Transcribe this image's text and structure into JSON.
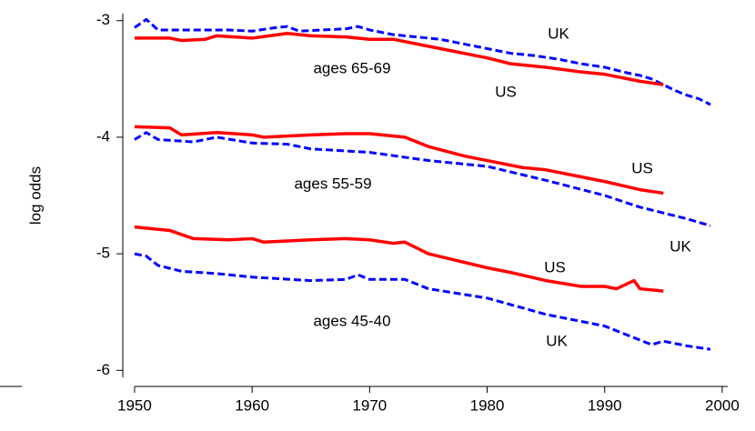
{
  "chart_data": {
    "type": "line",
    "ylabel": "log odds",
    "xlim": [
      1949,
      2000.5
    ],
    "xticks": [
      1950,
      1960,
      1970,
      1980,
      1990,
      2000
    ],
    "ylim": [
      -6.06,
      -2.94
    ],
    "yticks": [
      -3,
      -4,
      -5,
      -6
    ],
    "annotations": [
      "ages 65-69",
      "ages 55-59",
      "ages 45-40"
    ],
    "series": [
      {
        "name": "UK",
        "color": "#0000ff",
        "line_style": "dashed",
        "x": [
          1950,
          1951,
          1952,
          1953,
          1955,
          1958,
          1960,
          1962,
          1963,
          1964,
          1966,
          1968,
          1969,
          1970,
          1972,
          1974,
          1976,
          1978,
          1980,
          1982,
          1984,
          1986,
          1988,
          1990,
          1992,
          1993,
          1994,
          1995,
          1996,
          1997,
          1998,
          1999
        ],
        "values": [
          -3.06,
          -2.99,
          -3.08,
          -3.08,
          -3.08,
          -3.08,
          -3.09,
          -3.06,
          -3.05,
          -3.09,
          -3.08,
          -3.07,
          -3.05,
          -3.08,
          -3.12,
          -3.14,
          -3.16,
          -3.2,
          -3.24,
          -3.28,
          -3.3,
          -3.33,
          -3.37,
          -3.4,
          -3.45,
          -3.47,
          -3.5,
          -3.55,
          -3.6,
          -3.64,
          -3.67,
          -3.72
        ]
      },
      {
        "name": "US",
        "color": "#ff0000",
        "line_style": "solid",
        "x": [
          1950,
          1953,
          1954,
          1956,
          1957,
          1960,
          1963,
          1965,
          1968,
          1970,
          1972,
          1975,
          1978,
          1980,
          1982,
          1985,
          1988,
          1990,
          1993,
          1995
        ],
        "values": [
          -3.15,
          -3.15,
          -3.17,
          -3.16,
          -3.13,
          -3.15,
          -3.11,
          -3.13,
          -3.14,
          -3.16,
          -3.16,
          -3.22,
          -3.28,
          -3.32,
          -3.37,
          -3.4,
          -3.44,
          -3.46,
          -3.52,
          -3.55
        ]
      },
      {
        "name": "UK",
        "color": "#0000ff",
        "line_style": "dashed",
        "x": [
          1950,
          1951,
          1952,
          1955,
          1957,
          1960,
          1963,
          1965,
          1970,
          1975,
          1980,
          1985,
          1990,
          1993,
          1995,
          1997,
          1999
        ],
        "values": [
          -4.02,
          -3.96,
          -4.02,
          -4.04,
          -4.0,
          -4.05,
          -4.06,
          -4.1,
          -4.13,
          -4.2,
          -4.25,
          -4.37,
          -4.5,
          -4.6,
          -4.65,
          -4.7,
          -4.76
        ]
      },
      {
        "name": "US",
        "color": "#ff0000",
        "line_style": "solid",
        "x": [
          1950,
          1953,
          1954,
          1957,
          1960,
          1961,
          1965,
          1968,
          1970,
          1973,
          1975,
          1978,
          1980,
          1983,
          1985,
          1988,
          1990,
          1993,
          1995
        ],
        "values": [
          -3.91,
          -3.92,
          -3.98,
          -3.96,
          -3.98,
          -4.0,
          -3.98,
          -3.97,
          -3.97,
          -4.0,
          -4.08,
          -4.16,
          -4.2,
          -4.26,
          -4.28,
          -4.34,
          -4.38,
          -4.45,
          -4.48
        ]
      },
      {
        "name": "UK",
        "color": "#0000ff",
        "line_style": "dashed",
        "x": [
          1950,
          1951,
          1952,
          1954,
          1957,
          1960,
          1965,
          1968,
          1969,
          1970,
          1973,
          1975,
          1980,
          1985,
          1990,
          1992,
          1994,
          1995,
          1997,
          1999
        ],
        "values": [
          -5.0,
          -5.02,
          -5.1,
          -5.15,
          -5.17,
          -5.2,
          -5.23,
          -5.22,
          -5.18,
          -5.22,
          -5.22,
          -5.3,
          -5.38,
          -5.52,
          -5.62,
          -5.7,
          -5.78,
          -5.75,
          -5.79,
          -5.82
        ]
      },
      {
        "name": "US",
        "color": "#ff0000",
        "line_style": "solid",
        "x": [
          1950,
          1953,
          1955,
          1958,
          1960,
          1961,
          1965,
          1968,
          1970,
          1972,
          1973,
          1975,
          1980,
          1982,
          1985,
          1988,
          1990,
          1991,
          1992.5,
          1993,
          1995
        ],
        "values": [
          -4.77,
          -4.8,
          -4.87,
          -4.88,
          -4.87,
          -4.9,
          -4.88,
          -4.87,
          -4.88,
          -4.91,
          -4.9,
          -5.0,
          -5.12,
          -5.16,
          -5.23,
          -5.28,
          -5.28,
          -5.3,
          -5.23,
          -5.3,
          -5.32
        ]
      }
    ]
  }
}
